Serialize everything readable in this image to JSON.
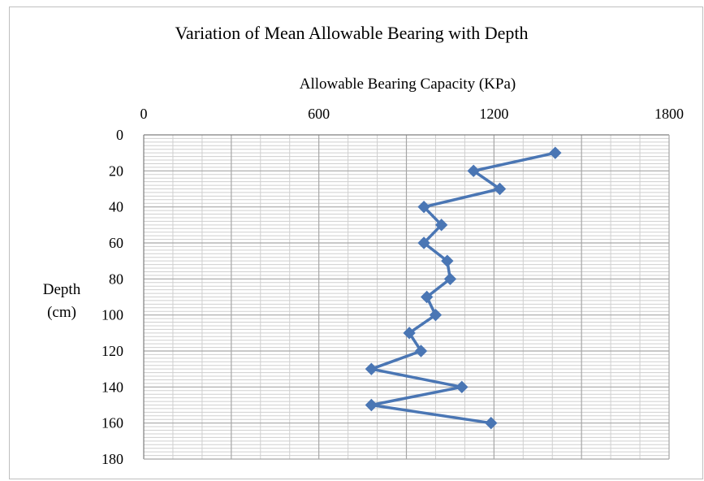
{
  "chart_data": {
    "type": "line",
    "title": "Variation of  Mean Allowable Bearing with Depth",
    "xlabel": "Allowable Bearing Capacity (KPa)",
    "ylabel_lines": [
      "Depth",
      "(cm)"
    ],
    "x_axis_position": "top",
    "y_axis_inverted": true,
    "xlim": [
      0,
      1800
    ],
    "ylim": [
      0,
      180
    ],
    "x_ticks": [
      "0",
      "600",
      "1200",
      "1800"
    ],
    "y_ticks": [
      "0",
      "20",
      "40",
      "60",
      "80",
      "100",
      "120",
      "140",
      "160",
      "180"
    ],
    "grid": true,
    "marker": "diamond",
    "series": [
      {
        "color": "#4a76b4",
        "points": [
          {
            "x": 1410,
            "y": 10
          },
          {
            "x": 1130,
            "y": 20
          },
          {
            "x": 1220,
            "y": 30
          },
          {
            "x": 960,
            "y": 40
          },
          {
            "x": 1020,
            "y": 50
          },
          {
            "x": 960,
            "y": 60
          },
          {
            "x": 1040,
            "y": 70
          },
          {
            "x": 1050,
            "y": 80
          },
          {
            "x": 970,
            "y": 90
          },
          {
            "x": 1000,
            "y": 100
          },
          {
            "x": 910,
            "y": 110
          },
          {
            "x": 950,
            "y": 120
          },
          {
            "x": 780,
            "y": 130
          },
          {
            "x": 1090,
            "y": 140
          },
          {
            "x": 780,
            "y": 150
          },
          {
            "x": 1190,
            "y": 160
          }
        ]
      }
    ]
  }
}
